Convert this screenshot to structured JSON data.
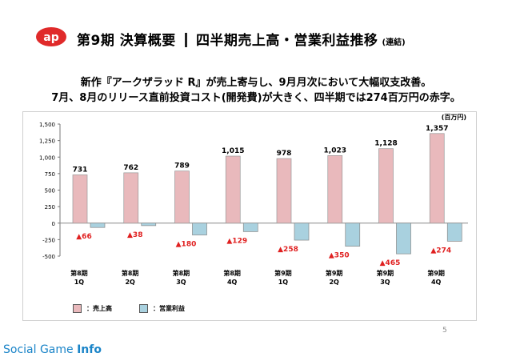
{
  "header": {
    "title": "第9期 決算概要",
    "subtitle": "四半期売上高・営業利益推移",
    "subtitle_small": "(連結)",
    "logo_text": "ap"
  },
  "lead": {
    "line1": "新作『アークザラッド R』が売上寄与し、9月月次において大幅収支改善。",
    "line2": "7月、8月のリリース直前投資コスト(開発費)が大きく、四半期では274百万円の赤字。"
  },
  "chart_data": {
    "type": "bar",
    "unit": "(百万円)",
    "categories": [
      [
        "第8期",
        "1Q"
      ],
      [
        "第8期",
        "2Q"
      ],
      [
        "第8期",
        "3Q"
      ],
      [
        "第8期",
        "4Q"
      ],
      [
        "第9期",
        "1Q"
      ],
      [
        "第9期",
        "2Q"
      ],
      [
        "第9期",
        "3Q"
      ],
      [
        "第9期",
        "4Q"
      ]
    ],
    "series": [
      {
        "name": "売上高",
        "legend_label": "：売上高",
        "color": "#e9b9bc",
        "values": [
          731,
          762,
          789,
          1015,
          978,
          1023,
          1128,
          1357
        ],
        "labels": [
          "731",
          "762",
          "789",
          "1,015",
          "978",
          "1,023",
          "1,128",
          "1,357"
        ]
      },
      {
        "name": "営業利益",
        "legend_label": "：営業利益",
        "color": "#a9d1df",
        "values": [
          -66,
          -38,
          -180,
          -129,
          -258,
          -350,
          -465,
          -274
        ],
        "labels": [
          "▲66",
          "▲38",
          "▲180",
          "▲129",
          "▲258",
          "▲350",
          "▲465",
          "▲274"
        ]
      }
    ],
    "ylim": [
      -500,
      1500
    ],
    "yticks": [
      1500,
      1250,
      1000,
      750,
      500,
      250,
      0,
      -250,
      -500
    ],
    "ytick_labels": [
      "1,500",
      "1,250",
      "1,000",
      "750",
      "500",
      "250",
      "0",
      "-250",
      "-500"
    ],
    "negative_label_color": "#e02020",
    "grid": false,
    "legend_position": "bottom-left"
  },
  "footer": {
    "page_number": "5",
    "brand_prefix": "Social Game ",
    "brand_suffix": "Info"
  }
}
